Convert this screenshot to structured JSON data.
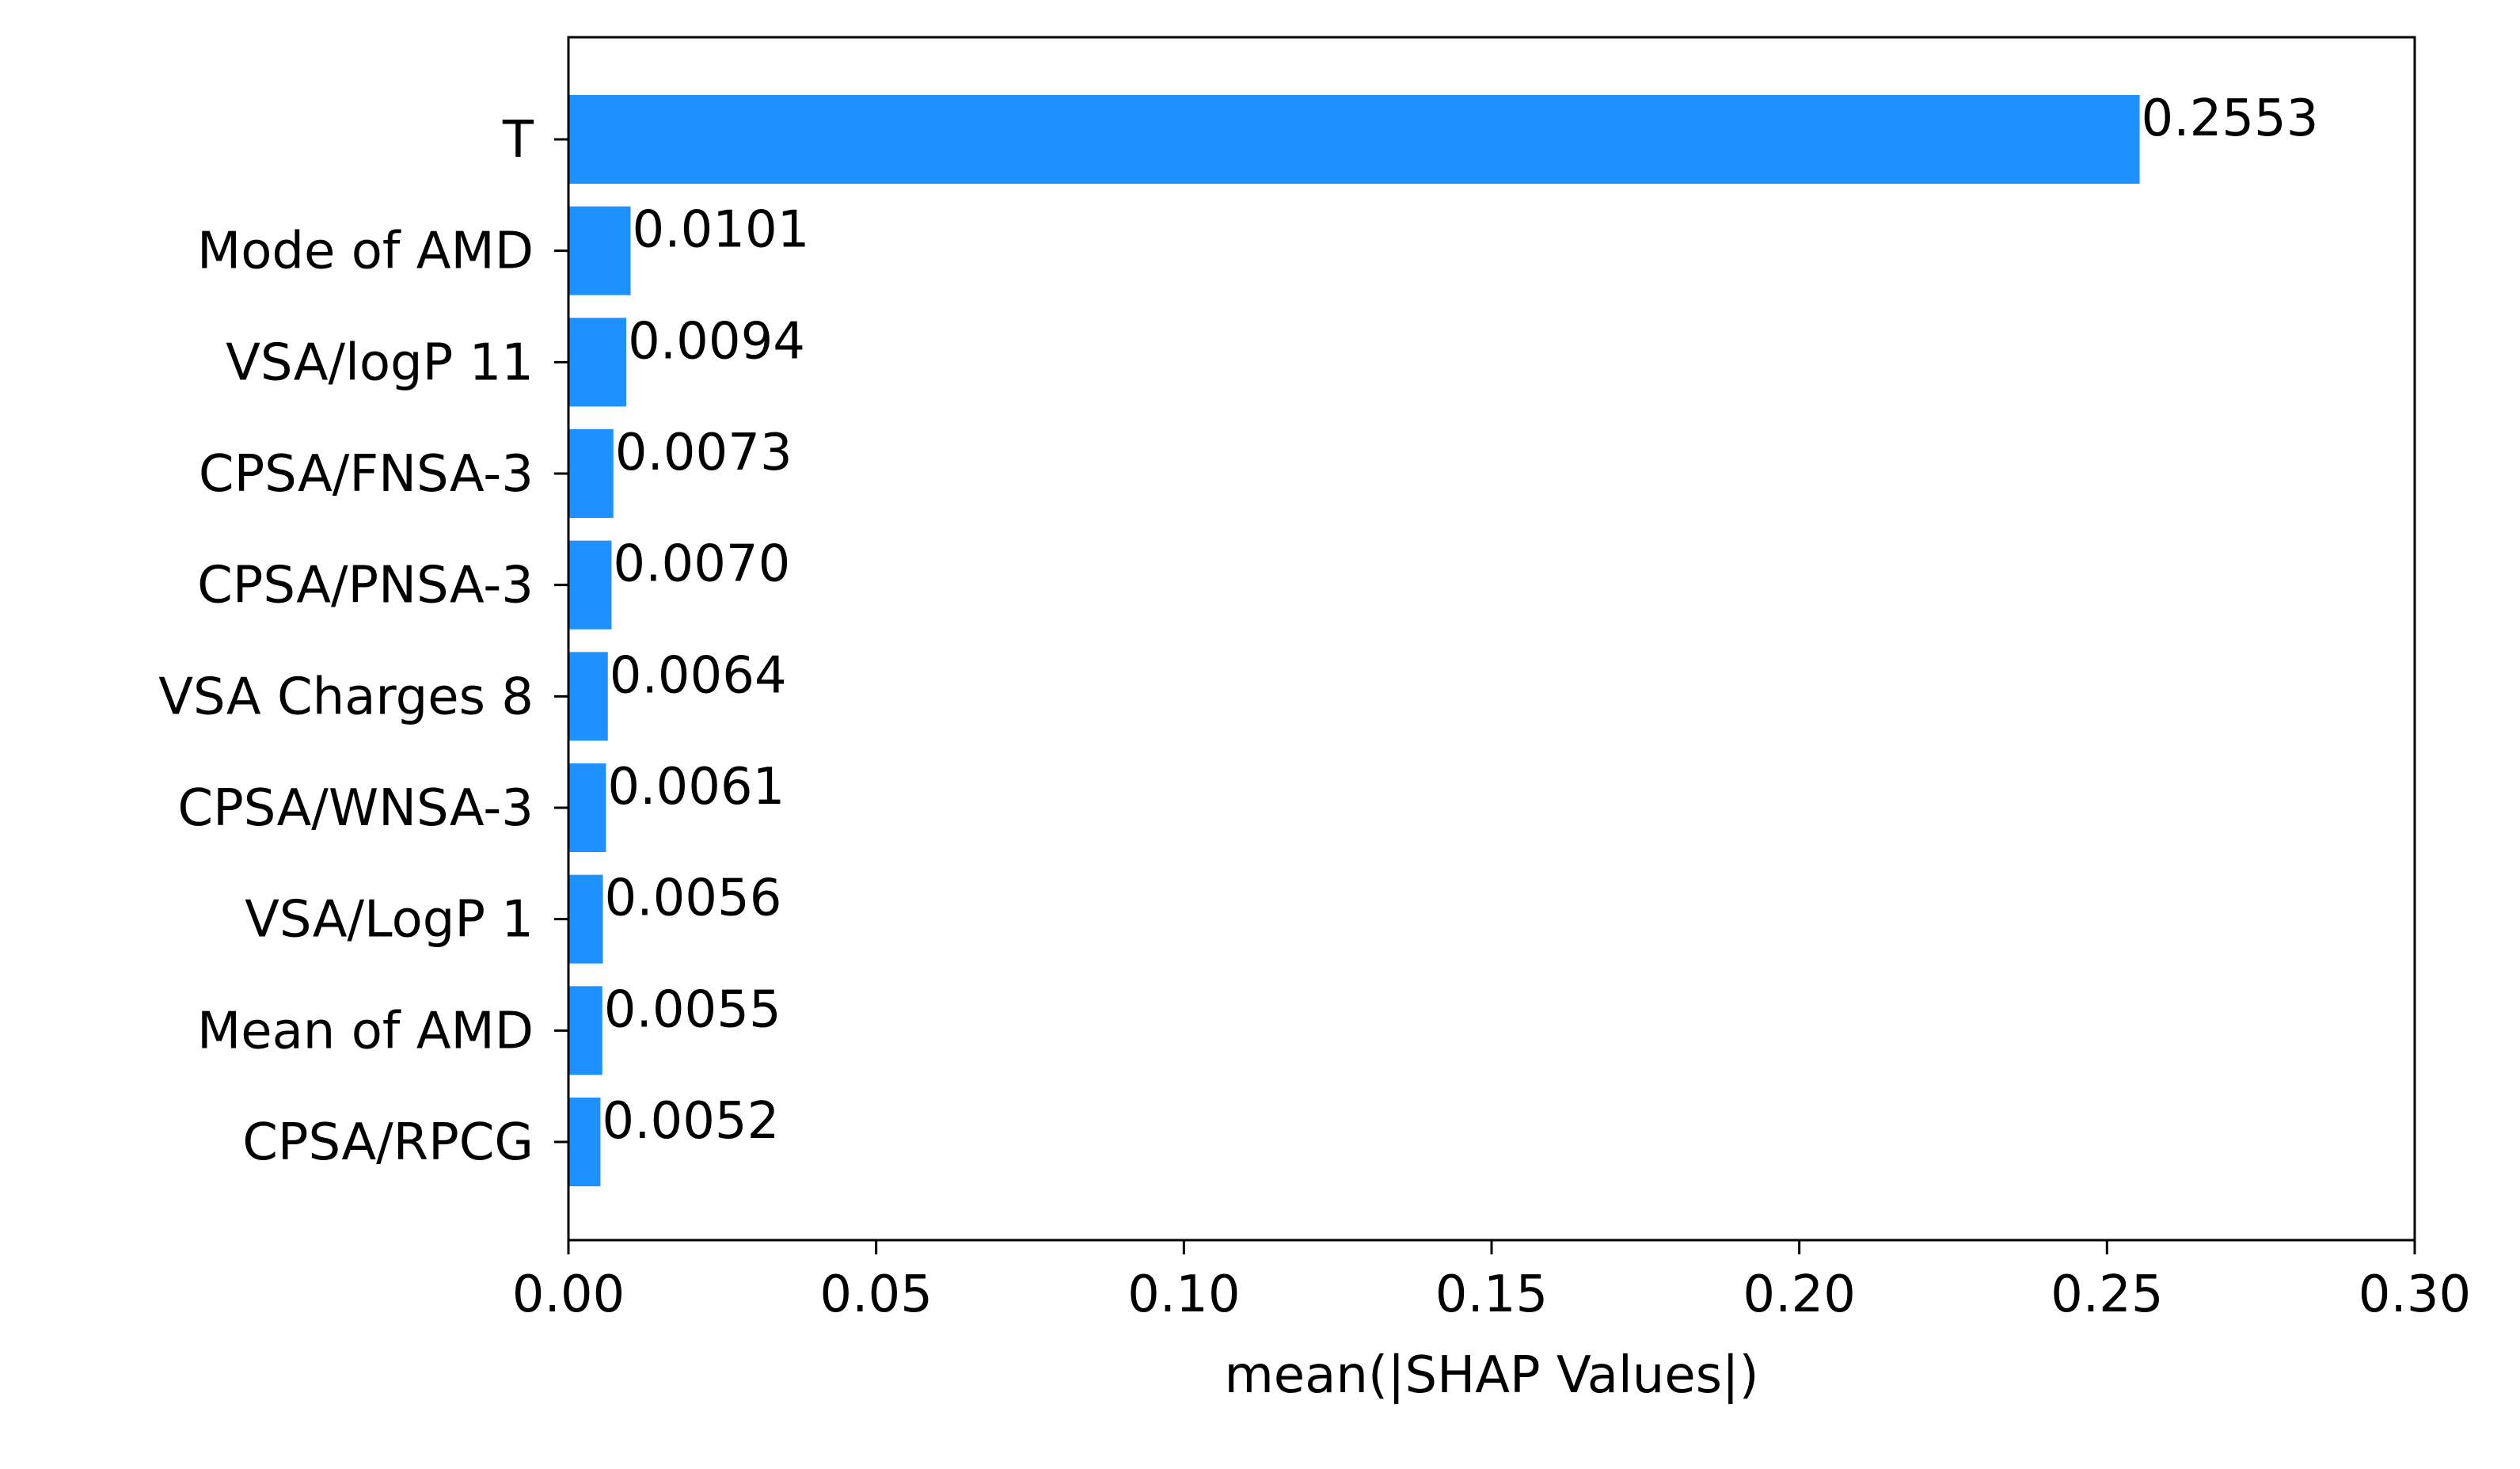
{
  "chart_data": {
    "type": "bar",
    "orientation": "horizontal",
    "categories": [
      "T",
      "Mode of AMD",
      "VSA/logP 11",
      "CPSA/FNSA-3",
      "CPSA/PNSA-3",
      "VSA Charges 8",
      "CPSA/WNSA-3",
      "VSA/LogP 1",
      "Mean of AMD",
      "CPSA/RPCG"
    ],
    "values": [
      0.2553,
      0.0101,
      0.0094,
      0.0073,
      0.007,
      0.0064,
      0.0061,
      0.0056,
      0.0055,
      0.0052
    ],
    "value_labels": [
      "0.2553",
      "0.0101",
      "0.0094",
      "0.0073",
      "0.0070",
      "0.0064",
      "0.0061",
      "0.0056",
      "0.0055",
      "0.0052"
    ],
    "xlabel": "mean(|SHAP Values|)",
    "ylabel": "",
    "title": "",
    "xlim": [
      0,
      0.3
    ],
    "xticks": [
      0,
      0.05,
      0.1,
      0.15,
      0.2,
      0.25,
      0.3
    ],
    "xtick_labels": [
      "0.00",
      "0.05",
      "0.10",
      "0.15",
      "0.20",
      "0.25",
      "0.30"
    ],
    "grid": false,
    "legend": "none",
    "bar_color": "#1E90FF"
  }
}
